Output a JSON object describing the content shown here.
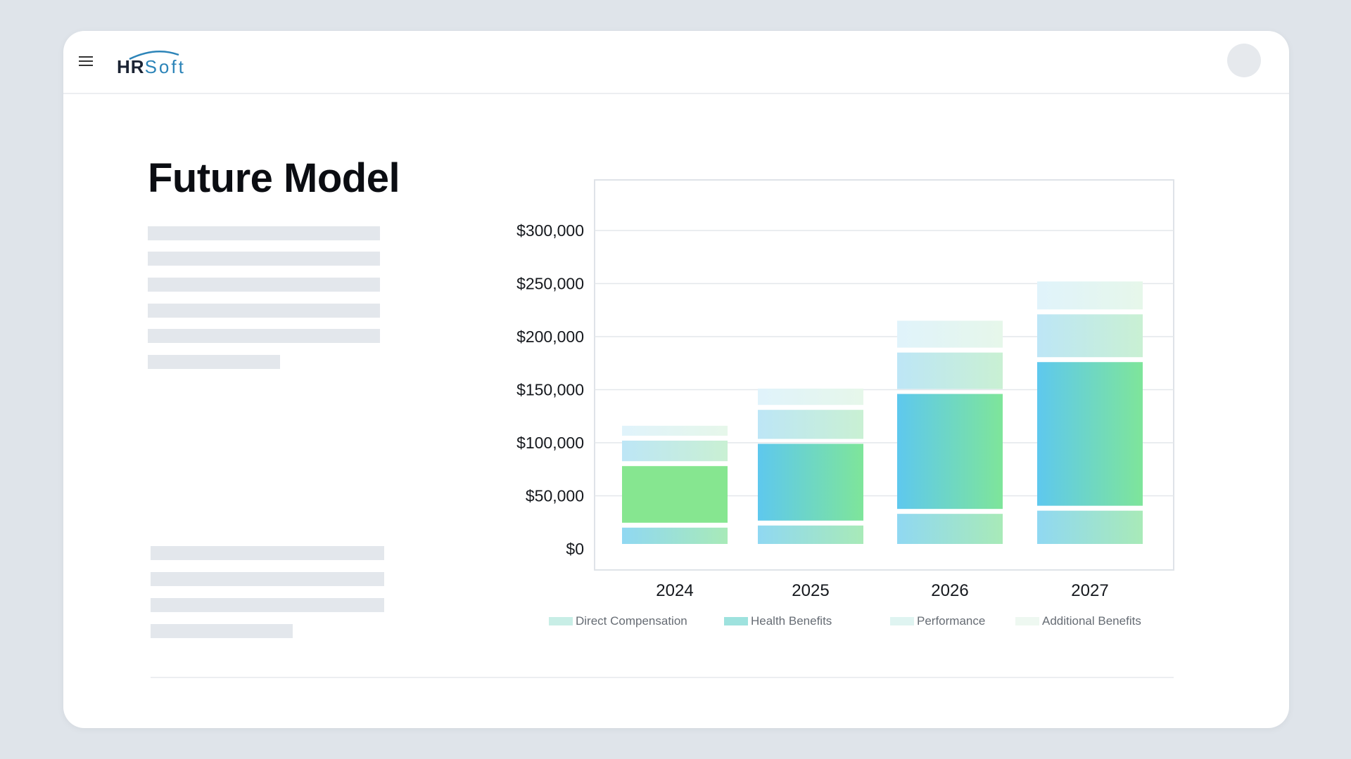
{
  "app": {
    "logo_hr": "HR",
    "logo_soft": "Soft"
  },
  "page": {
    "title": "Future Model"
  },
  "colors": {
    "accent": "#2c84b8",
    "skeleton": "#e3e7ec",
    "background": "#dfe4ea"
  },
  "icons": {
    "menu": "hamburger-icon",
    "avatar": "user-avatar"
  },
  "chart_data": {
    "type": "bar",
    "stacked": true,
    "categories": [
      "2024",
      "2025",
      "2026",
      "2027"
    ],
    "series": [
      {
        "name": "Direct Compensation",
        "values": [
          20000,
          22000,
          33000,
          36000
        ]
      },
      {
        "name": "Health Benefits",
        "values": [
          58000,
          77000,
          113000,
          140000
        ]
      },
      {
        "name": "Performance",
        "values": [
          24000,
          32000,
          39000,
          45000
        ]
      },
      {
        "name": "Additional Benefits",
        "values": [
          14000,
          20000,
          30000,
          31000
        ]
      }
    ],
    "ylim": [
      0,
      300000
    ],
    "yticks": [
      "$0",
      "$50,000",
      "$100,000",
      "$150,000",
      "$200,000",
      "$250,000",
      "$300,000"
    ],
    "ytick_values": [
      0,
      50000,
      100000,
      150000,
      200000,
      250000,
      300000
    ],
    "grid": true,
    "legend_position": "bottom",
    "xlabel": "",
    "ylabel": ""
  }
}
